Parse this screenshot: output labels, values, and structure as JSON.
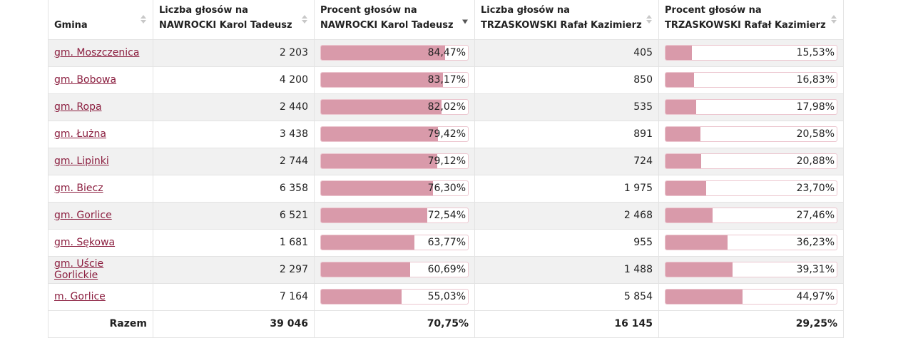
{
  "table": {
    "headers": [
      {
        "line1": "",
        "line2": "Gmina",
        "sort": "none"
      },
      {
        "line1": "Liczba głosów na",
        "line2": "NAWROCKI Karol Tadeusz",
        "sort": "none"
      },
      {
        "line1": "Procent głosów na",
        "line2": "NAWROCKI Karol Tadeusz",
        "sort": "desc"
      },
      {
        "line1": "Liczba głosów na",
        "line2": "TRZASKOWSKI Rafał Kazimierz",
        "sort": "none"
      },
      {
        "line1": "Procent głosów na",
        "line2": "TRZASKOWSKI Rafał Kazimierz",
        "sort": "none"
      }
    ],
    "rows": [
      {
        "gmina": "gm. Moszczenica",
        "n_votes": "2 203",
        "n_pct": "84,47%",
        "n_frac": 0.8447,
        "t_votes": "405",
        "t_pct": "15,53%",
        "t_frac": 0.1553
      },
      {
        "gmina": "gm. Bobowa",
        "n_votes": "4 200",
        "n_pct": "83,17%",
        "n_frac": 0.8317,
        "t_votes": "850",
        "t_pct": "16,83%",
        "t_frac": 0.1683
      },
      {
        "gmina": "gm. Ropa",
        "n_votes": "2 440",
        "n_pct": "82,02%",
        "n_frac": 0.8202,
        "t_votes": "535",
        "t_pct": "17,98%",
        "t_frac": 0.1798
      },
      {
        "gmina": "gm. Łużna",
        "n_votes": "3 438",
        "n_pct": "79,42%",
        "n_frac": 0.7942,
        "t_votes": "891",
        "t_pct": "20,58%",
        "t_frac": 0.2058
      },
      {
        "gmina": "gm. Lipinki",
        "n_votes": "2 744",
        "n_pct": "79,12%",
        "n_frac": 0.7912,
        "t_votes": "724",
        "t_pct": "20,88%",
        "t_frac": 0.2088
      },
      {
        "gmina": "gm. Biecz",
        "n_votes": "6 358",
        "n_pct": "76,30%",
        "n_frac": 0.763,
        "t_votes": "1 975",
        "t_pct": "23,70%",
        "t_frac": 0.237
      },
      {
        "gmina": "gm. Gorlice",
        "n_votes": "6 521",
        "n_pct": "72,54%",
        "n_frac": 0.7254,
        "t_votes": "2 468",
        "t_pct": "27,46%",
        "t_frac": 0.2746
      },
      {
        "gmina": "gm. Sękowa",
        "n_votes": "1 681",
        "n_pct": "63,77%",
        "n_frac": 0.6377,
        "t_votes": "955",
        "t_pct": "36,23%",
        "t_frac": 0.3623
      },
      {
        "gmina": "gm. Uście Gorlickie",
        "n_votes": "2 297",
        "n_pct": "60,69%",
        "n_frac": 0.6069,
        "t_votes": "1 488",
        "t_pct": "39,31%",
        "t_frac": 0.3931
      },
      {
        "gmina": "m. Gorlice",
        "n_votes": "7 164",
        "n_pct": "55,03%",
        "n_frac": 0.5503,
        "t_votes": "5 854",
        "t_pct": "44,97%",
        "t_frac": 0.4497
      }
    ],
    "total": {
      "label": "Razem",
      "n_votes": "39 046",
      "n_pct": "70,75%",
      "t_votes": "16 145",
      "t_pct": "29,25%"
    }
  },
  "colors": {
    "bar_fill": "#d99aaa",
    "bar_border": "#ecc6cf",
    "link": "#8b1e3f",
    "row_stripe": "#f1f1f1"
  }
}
